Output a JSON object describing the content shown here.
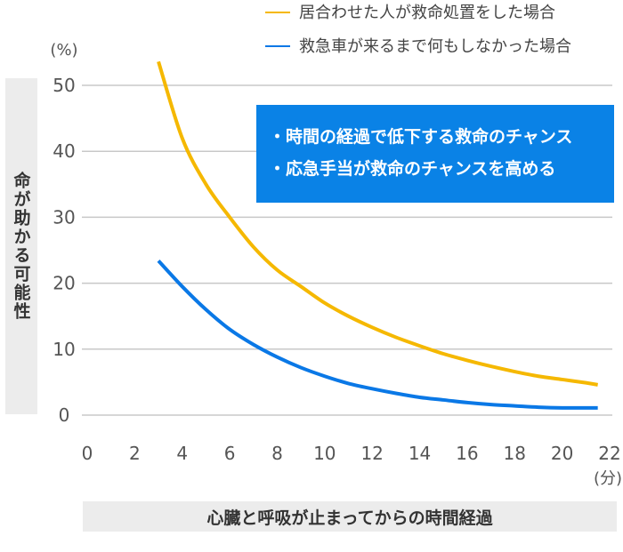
{
  "chart_data": {
    "type": "line",
    "xlabel": "心臓と呼吸が止まってからの時間経過",
    "ylabel": "命が助かる可能性",
    "x_unit": "(分)",
    "y_unit": "(%)",
    "xlim": [
      0,
      22
    ],
    "ylim": [
      0,
      50
    ],
    "x_ticks": [
      "0",
      "2",
      "4",
      "6",
      "8",
      "10",
      "12",
      "14",
      "16",
      "18",
      "20",
      "22"
    ],
    "y_ticks": [
      "0",
      "10",
      "20",
      "30",
      "40",
      "50"
    ],
    "grid": "horizontal",
    "legend": "top-right",
    "series": [
      {
        "name": "居合わせた人が救命処置をした場合",
        "color": "#f5b800",
        "x": [
          3,
          4,
          5,
          6,
          7,
          8,
          9,
          10,
          11,
          12,
          13,
          14,
          15,
          16,
          17,
          18,
          19,
          20,
          21,
          21.5
        ],
        "y": [
          53.6,
          42,
          35,
          30,
          25.5,
          22,
          19.5,
          17,
          15,
          13.3,
          11.8,
          10.5,
          9.3,
          8.3,
          7.4,
          6.6,
          5.9,
          5.4,
          4.9,
          4.6
        ]
      },
      {
        "name": "救急車が来るまで何もしなかった場合",
        "color": "#0a78e6",
        "x": [
          3,
          4,
          5,
          6,
          7,
          8,
          9,
          10,
          11,
          12,
          13,
          14,
          15,
          16,
          17,
          18,
          19,
          20,
          21,
          21.5
        ],
        "y": [
          23.4,
          19.5,
          16,
          13,
          10.7,
          8.8,
          7.2,
          5.9,
          4.8,
          4,
          3.3,
          2.7,
          2.3,
          1.9,
          1.6,
          1.4,
          1.2,
          1.1,
          1.1,
          1.1
        ]
      }
    ],
    "annotations": [
      "・時間の経過で低下する救命のチャンス",
      "・応急手当が救命のチャンスを高める"
    ]
  }
}
